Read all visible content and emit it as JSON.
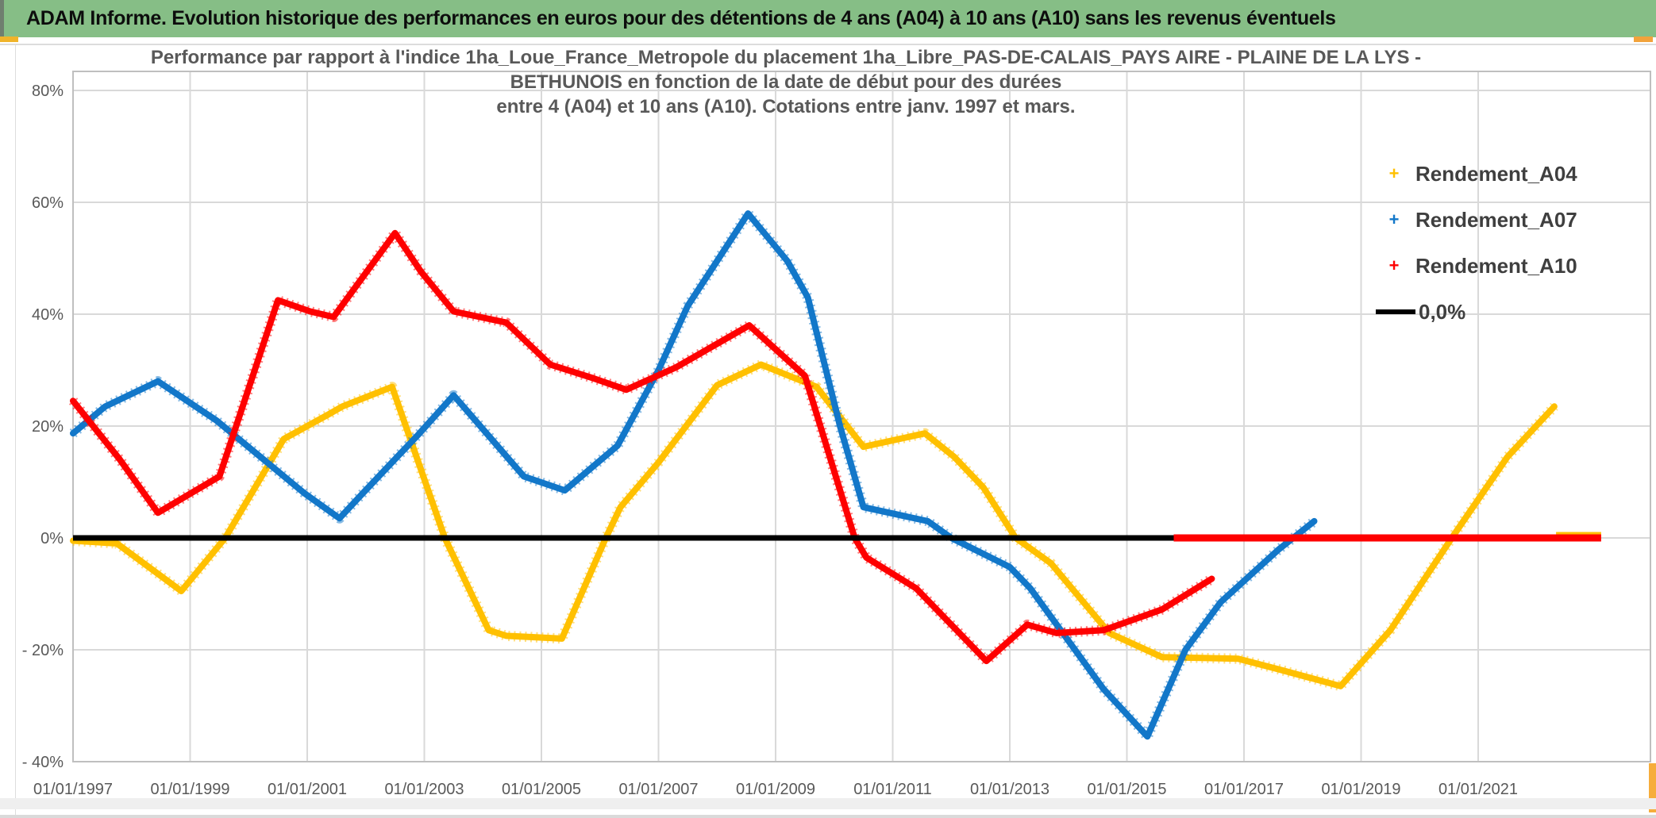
{
  "banner": {
    "title": "ADAM Informe. Evolution historique des performances en euros pour des détentions de 4 ans (A04) à 10 ans (A10) sans les revenus éventuels"
  },
  "colors": {
    "banner_bg": "#86be86",
    "gridline": "#d9d9d9",
    "plot_border": "#bfbfbf",
    "axis_text": "#595959",
    "series_a04": "#ffc000",
    "series_a07": "#1277c9",
    "series_a10": "#fe0000",
    "baseline": "#000000"
  },
  "chart_data": {
    "type": "line",
    "title_lines": [
      "Performance par rapport à l'indice 1ha_Loue_France_Metropole  du placement 1ha_Libre_PAS-DE-CALAIS_PAYS AIRE - PLAINE DE LA LYS -",
      "BETHUNOIS en fonction de la date de début pour des durées",
      "entre 4 (A04) et 10 ans (A10). Cotations entre janv. 1997 et mars."
    ],
    "x_axis": {
      "ticks": [
        {
          "year": 1997,
          "label": "01/01/1997"
        },
        {
          "year": 1999,
          "label": "01/01/1999"
        },
        {
          "year": 2001,
          "label": "01/01/2001"
        },
        {
          "year": 2003,
          "label": "01/01/2003"
        },
        {
          "year": 2005,
          "label": "01/01/2005"
        },
        {
          "year": 2007,
          "label": "01/01/2007"
        },
        {
          "year": 2009,
          "label": "01/01/2009"
        },
        {
          "year": 2011,
          "label": "01/01/2011"
        },
        {
          "year": 2013,
          "label": "01/01/2013"
        },
        {
          "year": 2015,
          "label": "01/01/2015"
        },
        {
          "year": 2017,
          "label": "01/01/2017"
        },
        {
          "year": 2019,
          "label": "01/01/2019"
        },
        {
          "year": 2021,
          "label": "01/01/2021"
        }
      ]
    },
    "y_axis": {
      "ticks": [
        {
          "value": 80,
          "label": "80%"
        },
        {
          "value": 60,
          "label": "60%"
        },
        {
          "value": 40,
          "label": "40%"
        },
        {
          "value": 20,
          "label": "20%"
        },
        {
          "value": 0,
          "label": "0%"
        },
        {
          "value": -20,
          "label": "- 20%"
        },
        {
          "value": -40,
          "label": "- 40%"
        }
      ]
    },
    "domain": {
      "x": [
        1997,
        2023.94
      ],
      "y": [
        -40,
        83.4
      ],
      "grid": true,
      "legend_position": "top-right"
    },
    "series": [
      {
        "name": "Rendement_A04",
        "color": "#ffc000",
        "marker": "plus",
        "points": [
          [
            1997.0,
            -0.5
          ],
          [
            1997.75,
            -1
          ],
          [
            1998.85,
            -9.5
          ],
          [
            1999.6,
            0
          ],
          [
            2000.6,
            17.7
          ],
          [
            2001.35,
            22
          ],
          [
            2001.6,
            23.5
          ],
          [
            2002.45,
            27
          ],
          [
            2003.35,
            0
          ],
          [
            2004.1,
            -16.5
          ],
          [
            2004.4,
            -17.5
          ],
          [
            2005.35,
            -18
          ],
          [
            2006.1,
            0
          ],
          [
            2006.35,
            5.5
          ],
          [
            2007.0,
            13.5
          ],
          [
            2008.0,
            27.3
          ],
          [
            2008.75,
            31
          ],
          [
            2009.7,
            27
          ],
          [
            2010.5,
            16.3
          ],
          [
            2011.55,
            18.7
          ],
          [
            2012.05,
            14.5
          ],
          [
            2012.55,
            9
          ],
          [
            2013.1,
            0
          ],
          [
            2013.7,
            -4.5
          ],
          [
            2014.7,
            -17
          ],
          [
            2015.6,
            -21.3
          ],
          [
            2016.9,
            -21.6
          ],
          [
            2017.6,
            -23.5
          ],
          [
            2018.65,
            -26.5
          ],
          [
            2019.5,
            -16.5
          ],
          [
            2020.55,
            0
          ],
          [
            2021.5,
            14.5
          ],
          [
            2022.3,
            23.5
          ]
        ]
      },
      {
        "name": "Rendement_A07",
        "color": "#1277c9",
        "marker": "plus",
        "points": [
          [
            1997.0,
            18.7
          ],
          [
            1997.55,
            23.5
          ],
          [
            1998.45,
            28
          ],
          [
            1999.45,
            21
          ],
          [
            2000.95,
            8
          ],
          [
            2001.55,
            3.5
          ],
          [
            2001.95,
            8
          ],
          [
            2002.9,
            18.5
          ],
          [
            2003.5,
            25.5
          ],
          [
            2004.7,
            11
          ],
          [
            2005.4,
            8.5
          ],
          [
            2006.3,
            16.5
          ],
          [
            2007.0,
            30
          ],
          [
            2007.5,
            41.5
          ],
          [
            2008.53,
            58
          ],
          [
            2009.2,
            49.5
          ],
          [
            2009.55,
            43
          ],
          [
            2010.1,
            20
          ],
          [
            2010.5,
            5.5
          ],
          [
            2011.6,
            3
          ],
          [
            2012.0,
            0
          ],
          [
            2013.0,
            -5.2
          ],
          [
            2013.35,
            -9
          ],
          [
            2014.6,
            -27
          ],
          [
            2015.35,
            -35.5
          ],
          [
            2016.0,
            -20
          ],
          [
            2016.6,
            -11.5
          ],
          [
            2017.6,
            -2
          ],
          [
            2018.2,
            3
          ]
        ]
      },
      {
        "name": "Rendement_A10",
        "color": "#fe0000",
        "marker": "plus",
        "points": [
          [
            1997.0,
            24.5
          ],
          [
            1997.8,
            14
          ],
          [
            1998.45,
            4.5
          ],
          [
            1999.5,
            11
          ],
          [
            2000.5,
            42.5
          ],
          [
            2001.05,
            40.5
          ],
          [
            2001.45,
            39.5
          ],
          [
            2002.5,
            54.5
          ],
          [
            2002.95,
            47.5
          ],
          [
            2003.5,
            40.5
          ],
          [
            2004.4,
            38.5
          ],
          [
            2005.15,
            31
          ],
          [
            2005.9,
            28.5
          ],
          [
            2006.45,
            26.5
          ],
          [
            2007.3,
            30.5
          ],
          [
            2008.55,
            38
          ],
          [
            2009.5,
            29
          ],
          [
            2010.35,
            0
          ],
          [
            2010.55,
            -3.5
          ],
          [
            2011.4,
            -9
          ],
          [
            2012.6,
            -22
          ],
          [
            2013.3,
            -15.5
          ],
          [
            2013.8,
            -17
          ],
          [
            2014.6,
            -16.5
          ],
          [
            2015.6,
            -12.8
          ],
          [
            2016.45,
            -7.3
          ]
        ]
      }
    ],
    "baseline": {
      "label": "0,0%",
      "color": "#000000",
      "value": 0,
      "x_range": [
        1997.0,
        2015.89
      ]
    },
    "zero_tails": [
      {
        "series": "Rendement_A10",
        "color": "#fe0000",
        "value": 0,
        "x_range": [
          2015.8,
          2023.1
        ]
      },
      {
        "series": "Rendement_A04",
        "color": "#ffc000",
        "value": 0,
        "x_range": [
          2022.33,
          2023.1
        ]
      }
    ],
    "legend": {
      "items": [
        {
          "label": "Rendement_A04",
          "color": "#ffc000",
          "marker": "plus"
        },
        {
          "label": "Rendement_A07",
          "color": "#1277c9",
          "marker": "plus"
        },
        {
          "label": "Rendement_A10",
          "color": "#fe0000",
          "marker": "plus"
        },
        {
          "label": "0,0%",
          "color": "#000000",
          "marker": "line"
        }
      ]
    }
  }
}
